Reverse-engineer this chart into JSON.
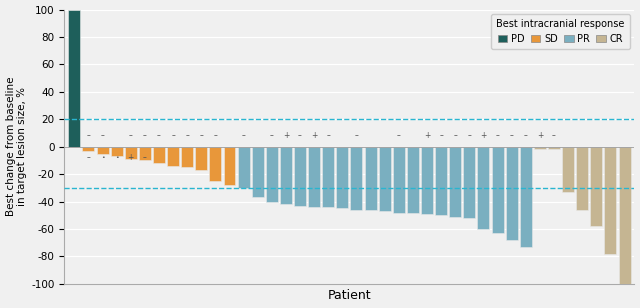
{
  "title": "Best intracranial response",
  "xlabel": "Patient",
  "ylabel": "Best change from baseline\nin target lesion size, %",
  "ylim": [
    -100,
    100
  ],
  "yticks": [
    -100,
    -80,
    -60,
    -40,
    -20,
    0,
    20,
    40,
    60,
    80,
    100
  ],
  "hline1": 20,
  "hline2": -30,
  "bars": [
    {
      "value": 100,
      "color": "#1e5f5b",
      "marker": null
    },
    {
      "value": -3,
      "color": "#e8973a",
      "marker": "-",
      "above": true
    },
    {
      "value": -5,
      "color": "#e8973a",
      "marker": "-",
      "above": true
    },
    {
      "value": -7,
      "color": "#e8973a",
      "marker": null,
      "above": true
    },
    {
      "value": -9,
      "color": "#e8973a",
      "marker": "-",
      "above": true
    },
    {
      "value": -10,
      "color": "#e8973a",
      "marker": "-",
      "above": true
    },
    {
      "value": -12,
      "color": "#e8973a",
      "marker": "-",
      "above": true
    },
    {
      "value": -14,
      "color": "#e8973a",
      "marker": "-",
      "above": true
    },
    {
      "value": -15,
      "color": "#e8973a",
      "marker": "-",
      "above": true
    },
    {
      "value": -17,
      "color": "#e8973a",
      "marker": "-",
      "above": true
    },
    {
      "value": -25,
      "color": "#e8973a",
      "marker": "-",
      "above": true
    },
    {
      "value": -28,
      "color": "#e8973a",
      "marker": null,
      "above": true
    },
    {
      "value": -30,
      "color": "#7aafc0",
      "marker": "-",
      "above": true
    },
    {
      "value": -37,
      "color": "#7aafc0",
      "marker": null,
      "above": true
    },
    {
      "value": -40,
      "color": "#7aafc0",
      "marker": "-",
      "above": true
    },
    {
      "value": -42,
      "color": "#7aafc0",
      "marker": "+",
      "above": true
    },
    {
      "value": -43,
      "color": "#7aafc0",
      "marker": "-",
      "above": true
    },
    {
      "value": -44,
      "color": "#7aafc0",
      "marker": "+",
      "above": true
    },
    {
      "value": -44,
      "color": "#7aafc0",
      "marker": "-",
      "above": true
    },
    {
      "value": -45,
      "color": "#7aafc0",
      "marker": null,
      "above": true
    },
    {
      "value": -46,
      "color": "#7aafc0",
      "marker": "-",
      "above": true
    },
    {
      "value": -46,
      "color": "#7aafc0",
      "marker": null,
      "above": true
    },
    {
      "value": -47,
      "color": "#7aafc0",
      "marker": null,
      "above": true
    },
    {
      "value": -48,
      "color": "#7aafc0",
      "marker": "-",
      "above": true
    },
    {
      "value": -48,
      "color": "#7aafc0",
      "marker": null,
      "above": true
    },
    {
      "value": -49,
      "color": "#7aafc0",
      "marker": "+",
      "above": true
    },
    {
      "value": -50,
      "color": "#7aafc0",
      "marker": "-",
      "above": true
    },
    {
      "value": -51,
      "color": "#7aafc0",
      "marker": "-",
      "above": true
    },
    {
      "value": -52,
      "color": "#7aafc0",
      "marker": "-",
      "above": true
    },
    {
      "value": -60,
      "color": "#7aafc0",
      "marker": "+",
      "above": true
    },
    {
      "value": -63,
      "color": "#7aafc0",
      "marker": "-",
      "above": true
    },
    {
      "value": -68,
      "color": "#7aafc0",
      "marker": "-",
      "above": true
    },
    {
      "value": -73,
      "color": "#7aafc0",
      "marker": "-",
      "above": true
    },
    {
      "value": -2,
      "color": "#c5b592",
      "marker": "+",
      "above": true
    },
    {
      "value": -2,
      "color": "#c5b592",
      "marker": "-",
      "above": true
    },
    {
      "value": -33,
      "color": "#c5b592",
      "marker": null,
      "above": true
    },
    {
      "value": -46,
      "color": "#c5b592",
      "marker": null,
      "above": true
    },
    {
      "value": -58,
      "color": "#c5b592",
      "marker": null,
      "above": true
    },
    {
      "value": -78,
      "color": "#c5b592",
      "marker": null,
      "above": true
    },
    {
      "value": -100,
      "color": "#c5b592",
      "marker": null,
      "above": true
    }
  ],
  "pd_markers": [
    "-",
    ".",
    ".",
    "+",
    "-"
  ],
  "pd_x": [
    1,
    2,
    3,
    4,
    5
  ],
  "pd_vals": [
    -3,
    -5,
    -5,
    -8,
    -10
  ],
  "legend_order": [
    "PD",
    "SD",
    "PR",
    "CR"
  ],
  "legend_colors": {
    "PD": "#1e5f5b",
    "SD": "#e8973a",
    "PR": "#7aafc0",
    "CR": "#c5b592"
  },
  "figsize": [
    6.4,
    3.08
  ],
  "dpi": 100,
  "bg_color": "#f0f0f0",
  "grid_color": "#ffffff",
  "hline_color": "#29b5d0",
  "bar_edgecolor": "#e8e8e8"
}
